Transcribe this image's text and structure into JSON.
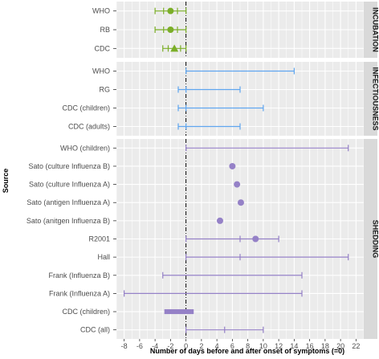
{
  "chart_data": {
    "type": "interval",
    "xlabel": "Number of days before and after onset of symptoms (=0)",
    "ylabel": "Source",
    "xlim": [
      -9,
      23
    ],
    "x_ticks": [
      -8,
      -6,
      -4,
      -2,
      0,
      2,
      4,
      6,
      8,
      10,
      12,
      14,
      16,
      18,
      20,
      22
    ],
    "reference_line_x": 0,
    "grid": true,
    "facets": [
      {
        "name": "INCUBATION",
        "color": "#7bae28",
        "rows": [
          {
            "label": "WHO",
            "low": -4,
            "high": 0,
            "inner_low": -2.9,
            "inner_high": -1.1,
            "point": -2,
            "marker": "circle"
          },
          {
            "label": "RB",
            "low": -4,
            "high": 0,
            "inner_low": -2.9,
            "inner_high": -1.1,
            "point": -2,
            "marker": "circle"
          },
          {
            "label": "CDC",
            "low": -3,
            "high": 0,
            "inner_low": -2.3,
            "inner_high": -0.7,
            "point": -1.5,
            "marker": "triangle"
          }
        ]
      },
      {
        "name": "INFECTIOUSNESS",
        "color": "#5fa6f0",
        "rows": [
          {
            "label": "WHO",
            "low": 0,
            "high": 14
          },
          {
            "label": "RG",
            "low": -1,
            "high": 7,
            "inner_low": 0,
            "inner_high": 0
          },
          {
            "label": "CDC (children)",
            "low": -1,
            "high": 10,
            "inner_low": 0,
            "inner_high": 0
          },
          {
            "label": "CDC (adults)",
            "low": -1,
            "high": 7,
            "inner_low": 0,
            "inner_high": 0
          }
        ]
      },
      {
        "name": "SHEDDING",
        "color": "#9581c7",
        "rows": [
          {
            "label": "WHO (children)",
            "low": 0,
            "high": 21
          },
          {
            "label": "Sato (culture Influenza B)",
            "point": 6,
            "marker": "circle"
          },
          {
            "label": "Sato (culture Influenza A)",
            "point": 6.6,
            "marker": "circle"
          },
          {
            "label": "Sato (antigen Influenza A)",
            "point": 7.1,
            "marker": "circle"
          },
          {
            "label": "Sato (anitgen Influenza B)",
            "point": 4.4,
            "marker": "circle"
          },
          {
            "label": "R2001",
            "low": 0,
            "high": 12,
            "inner_low": 7,
            "inner_high": 7,
            "point": 9,
            "marker": "circle"
          },
          {
            "label": "Hall",
            "low": 0,
            "high": 21,
            "inner_low": 7,
            "inner_high": 7
          },
          {
            "label": "Frank (Influenza B)",
            "low": -3,
            "high": 15
          },
          {
            "label": "Frank (Influenza A)",
            "low": -8,
            "high": 15
          },
          {
            "label": "CDC (children)",
            "low": -2.8,
            "high": 1,
            "bar": true
          },
          {
            "label": "CDC (all)",
            "low": 0,
            "high": 10,
            "inner_low": 5,
            "inner_high": 5
          }
        ]
      }
    ]
  }
}
